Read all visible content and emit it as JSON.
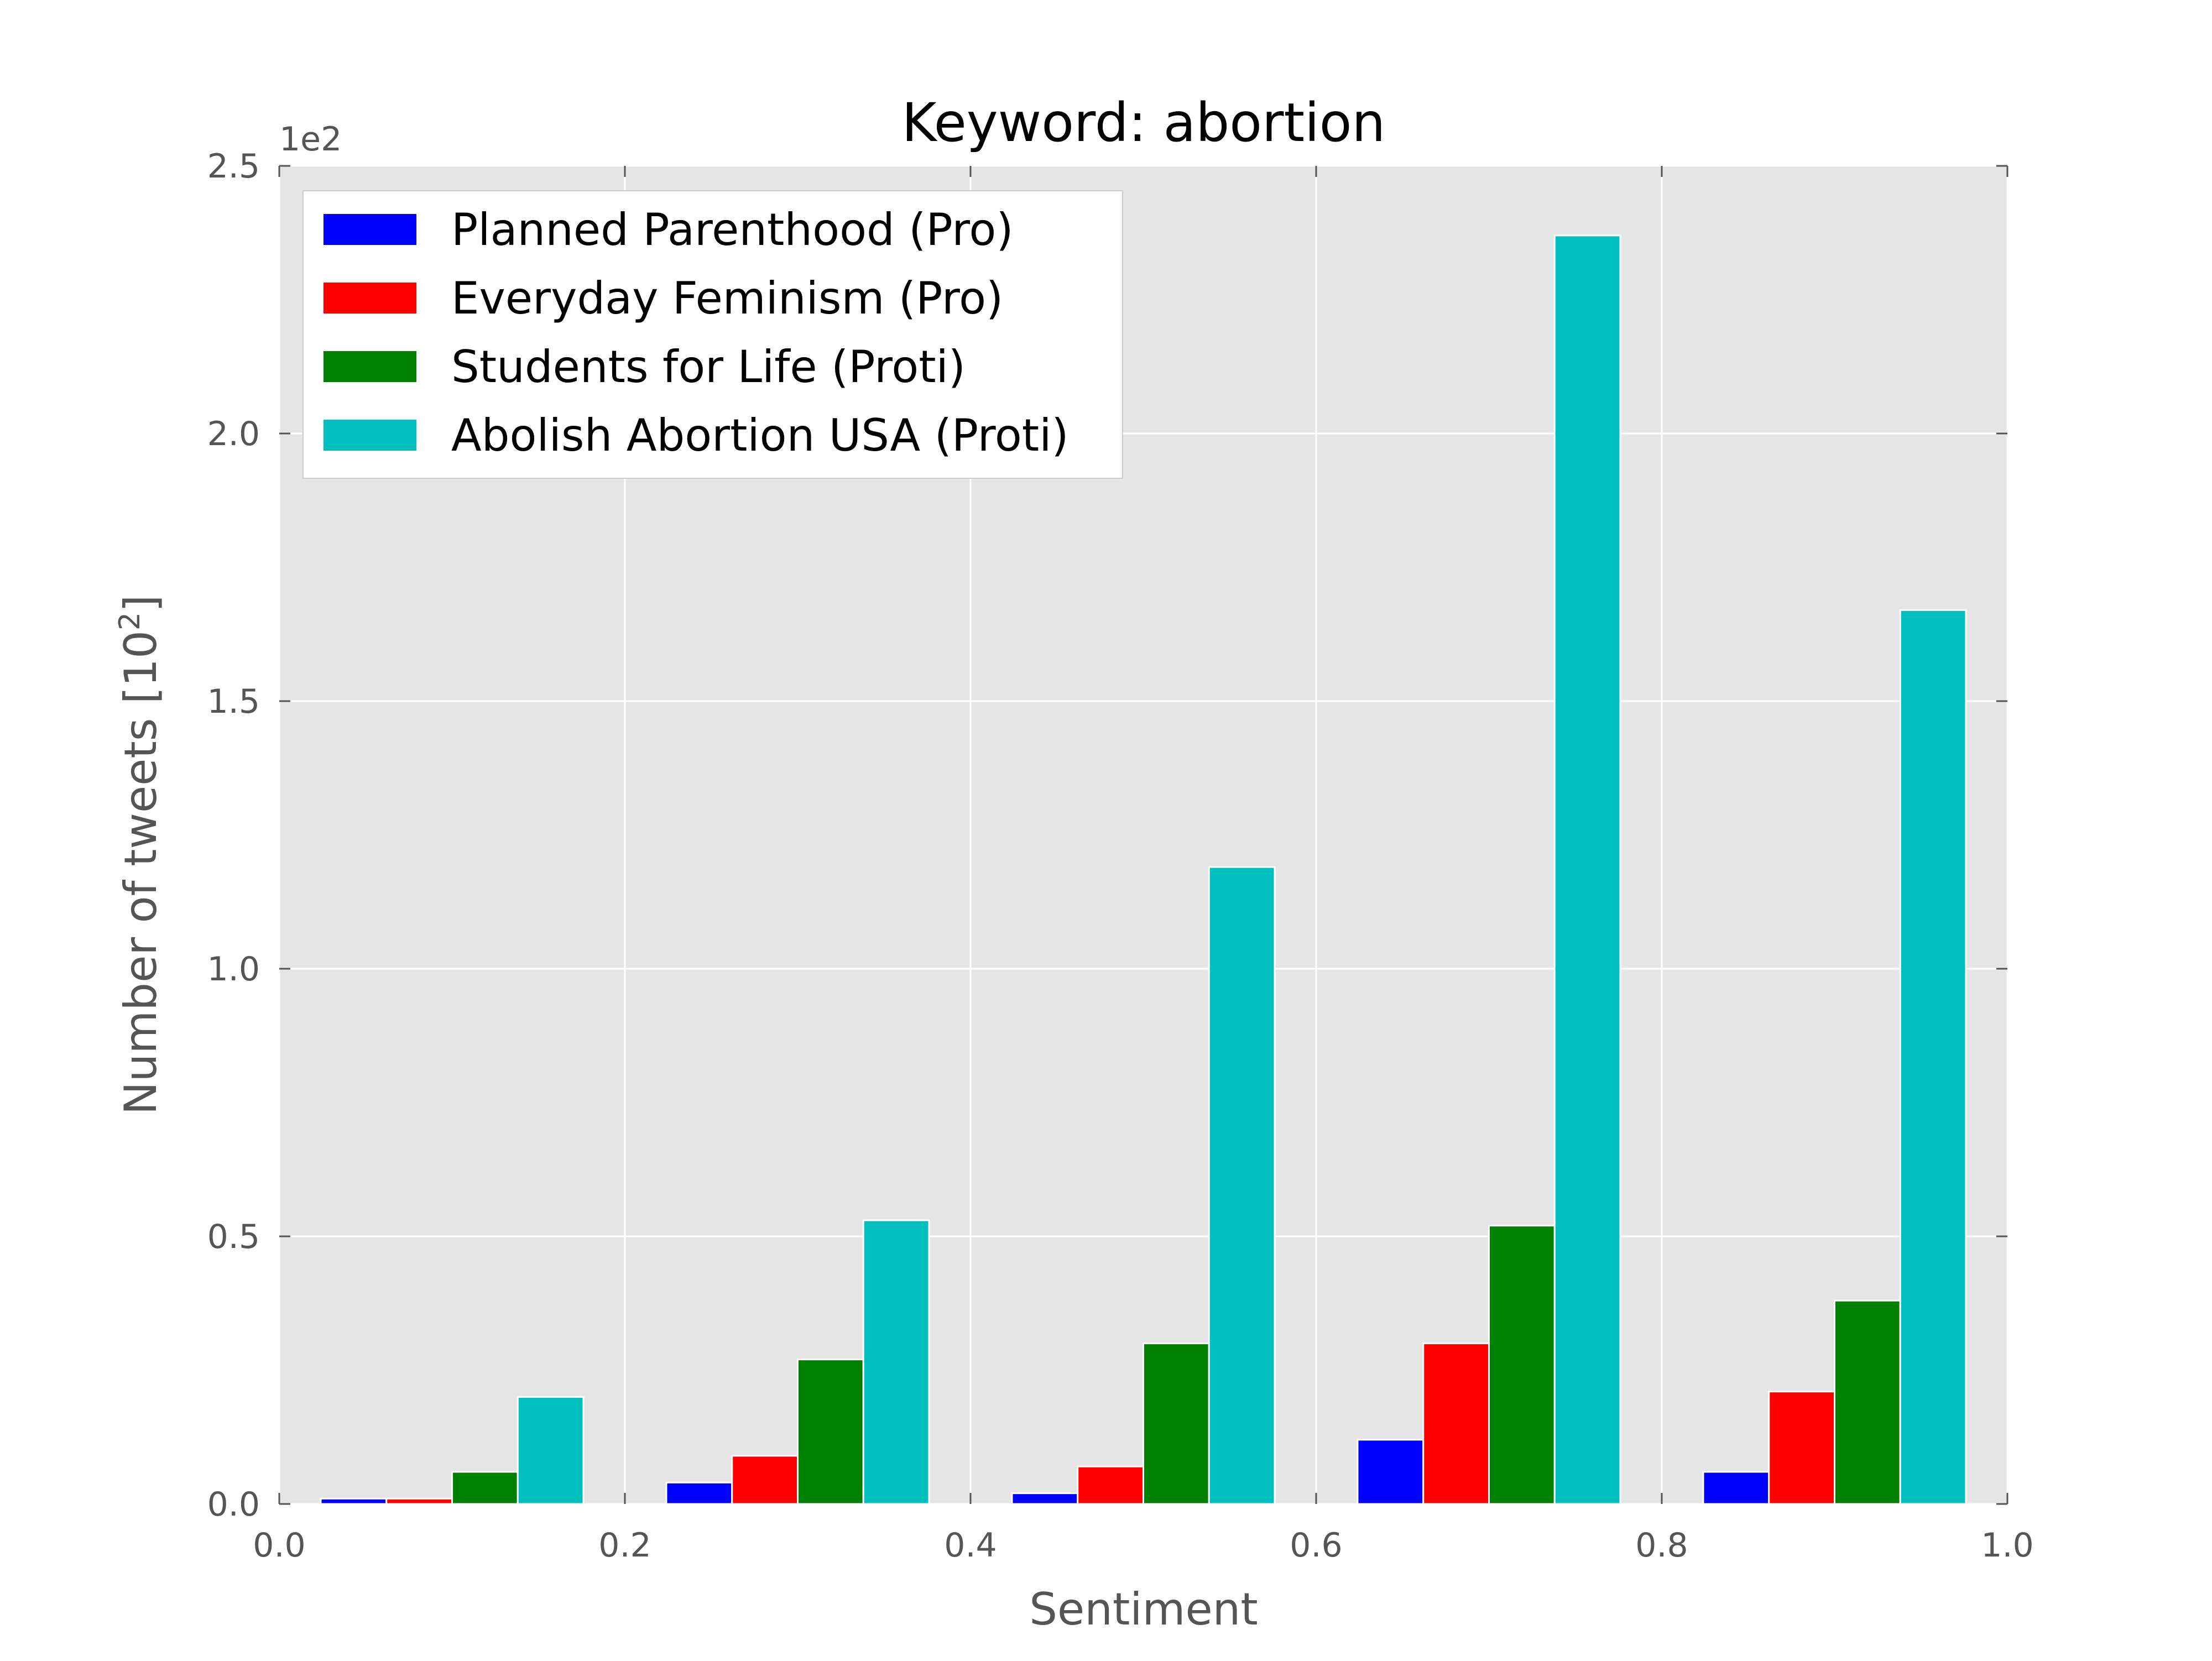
{
  "chart_data": {
    "type": "bar",
    "title": "Keyword: abortion",
    "xlabel": "Sentiment",
    "ylabel": "Number of tweets [10",
    "ylabel_exponent": "2",
    "ylabel_close": "]",
    "y_offset_label": "1e2",
    "xlim": [
      0.0,
      1.0
    ],
    "ylim": [
      0.0,
      2.5
    ],
    "x_ticks": [
      0.0,
      0.2,
      0.4,
      0.6,
      0.8,
      1.0
    ],
    "x_tick_labels": [
      "0.0",
      "0.2",
      "0.4",
      "0.6",
      "0.8",
      "1.0"
    ],
    "y_ticks": [
      0.0,
      0.5,
      1.0,
      1.5,
      2.0,
      2.5
    ],
    "y_tick_labels": [
      "0.0",
      "0.5",
      "1.0",
      "1.5",
      "2.0",
      "2.5"
    ],
    "bin_edges": [
      0.0,
      0.2,
      0.4,
      0.6,
      0.8,
      1.0
    ],
    "grid": true,
    "legend_position": "upper-left",
    "background_color": "#e5e5e5",
    "series": [
      {
        "name": "Planned Parenthood (Pro)",
        "color": "#0000ff",
        "values": [
          0.01,
          0.04,
          0.02,
          0.12,
          0.06
        ]
      },
      {
        "name": "Everyday Feminism (Pro)",
        "color": "#ff0000",
        "values": [
          0.01,
          0.09,
          0.07,
          0.3,
          0.21
        ]
      },
      {
        "name": "Students for Life (Proti)",
        "color": "#008000",
        "values": [
          0.06,
          0.27,
          0.3,
          0.52,
          0.38
        ]
      },
      {
        "name": "Abolish Abortion USA (Proti)",
        "color": "#00bfbf",
        "values": [
          0.2,
          0.53,
          1.19,
          2.37,
          1.67
        ]
      }
    ]
  }
}
